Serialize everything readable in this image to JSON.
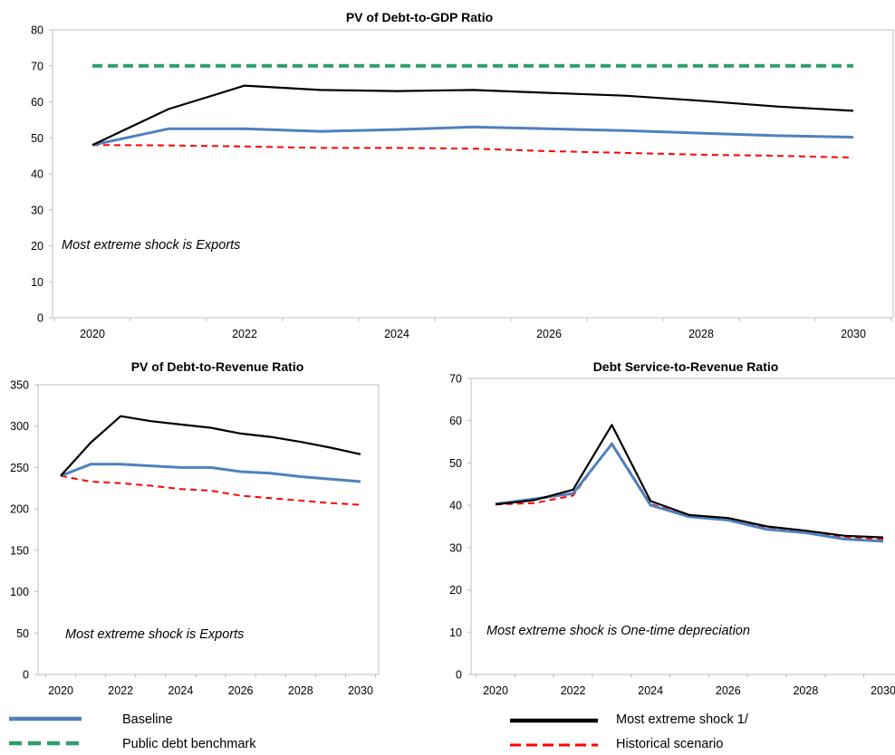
{
  "chart_data": [
    {
      "type": "line",
      "title": "PV of Debt-to-GDP Ratio",
      "x": [
        2020,
        2021,
        2022,
        2023,
        2024,
        2025,
        2026,
        2027,
        2028,
        2029,
        2030
      ],
      "xticks": [
        "2020",
        "2022",
        "2024",
        "2026",
        "2028",
        "2030"
      ],
      "ylim": [
        0,
        80
      ],
      "yticks": [
        "0",
        "10",
        "20",
        "30",
        "40",
        "50",
        "60",
        "70",
        "80"
      ],
      "series": [
        {
          "name": "Baseline",
          "values": [
            48,
            52.5,
            52.5,
            51.8,
            52.3,
            53,
            52.5,
            52,
            51.3,
            50.6,
            50.2
          ]
        },
        {
          "name": "Most extreme shock 1/",
          "values": [
            48,
            58,
            64.5,
            63.3,
            63,
            63.3,
            62.5,
            61.7,
            60.3,
            58.7,
            57.5
          ]
        },
        {
          "name": "Historical scenario",
          "values": [
            48,
            47.9,
            47.6,
            47.2,
            47.2,
            47,
            46.3,
            45.8,
            45.3,
            45,
            44.5
          ]
        },
        {
          "name": "Public debt benchmark",
          "values": [
            70,
            70,
            70,
            70,
            70,
            70,
            70,
            70,
            70,
            70,
            70
          ]
        }
      ],
      "annotation": "Most extreme shock is Exports",
      "legend": "bottom",
      "grid": false
    },
    {
      "type": "line",
      "title": "PV of Debt-to-Revenue Ratio",
      "x": [
        2020,
        2021,
        2022,
        2023,
        2024,
        2025,
        2026,
        2027,
        2028,
        2029,
        2030
      ],
      "xticks": [
        "2020",
        "2022",
        "2024",
        "2026",
        "2028",
        "2030"
      ],
      "ylim": [
        0,
        350
      ],
      "yticks": [
        "0",
        "50",
        "100",
        "150",
        "200",
        "250",
        "300",
        "350"
      ],
      "series": [
        {
          "name": "Baseline",
          "values": [
            240,
            254,
            254,
            252,
            250,
            250,
            245,
            243,
            239,
            236,
            233
          ]
        },
        {
          "name": "Most extreme shock 1/",
          "values": [
            240,
            280,
            312,
            306,
            302,
            298,
            291,
            287,
            281,
            274,
            266
          ]
        },
        {
          "name": "Historical scenario",
          "values": [
            240,
            233,
            231,
            228,
            224,
            222,
            216,
            213,
            210,
            207,
            205
          ]
        }
      ],
      "annotation": "Most extreme shock is Exports",
      "grid": false
    },
    {
      "type": "line",
      "title": "Debt Service-to-Revenue Ratio",
      "x": [
        2020,
        2021,
        2022,
        2023,
        2024,
        2025,
        2026,
        2027,
        2028,
        2029,
        2030
      ],
      "xticks": [
        "2020",
        "2022",
        "2024",
        "2026",
        "2028",
        "2030"
      ],
      "ylim": [
        0,
        70
      ],
      "yticks": [
        "0",
        "10",
        "20",
        "30",
        "40",
        "50",
        "60",
        "70"
      ],
      "series": [
        {
          "name": "Baseline",
          "values": [
            40.3,
            41.5,
            42.8,
            54.5,
            40,
            37.3,
            36.5,
            34.3,
            33.5,
            32,
            31.5
          ]
        },
        {
          "name": "Most extreme shock 1/",
          "values": [
            40.2,
            41.2,
            43.7,
            59,
            41,
            37.7,
            37,
            35,
            34,
            32.8,
            32.4
          ]
        },
        {
          "name": "Historical scenario",
          "values": [
            40.2,
            40.5,
            42.3,
            54.7,
            40.3,
            37.5,
            36.7,
            34.5,
            33.7,
            32.5,
            32
          ]
        }
      ],
      "annotation": "Most extreme shock is One-time depreciation",
      "grid": false
    }
  ],
  "legend": [
    {
      "key": "baseline",
      "label": "Baseline",
      "color": "#4f81bd",
      "dash": "solid"
    },
    {
      "key": "shock",
      "label": "Most extreme shock 1/",
      "color": "#000000",
      "dash": "solid"
    },
    {
      "key": "benchmark",
      "label": "Public debt benchmark",
      "color": "#2e9e6b",
      "dash": "dashed"
    },
    {
      "key": "historical",
      "label": "Historical scenario",
      "color": "#ff0000",
      "dash": "dashed"
    }
  ],
  "colors": {
    "Baseline": "#4f81bd",
    "Most extreme shock 1/": "#000000",
    "Historical scenario": "#ff0000",
    "Public debt benchmark": "#2e9e6b"
  }
}
